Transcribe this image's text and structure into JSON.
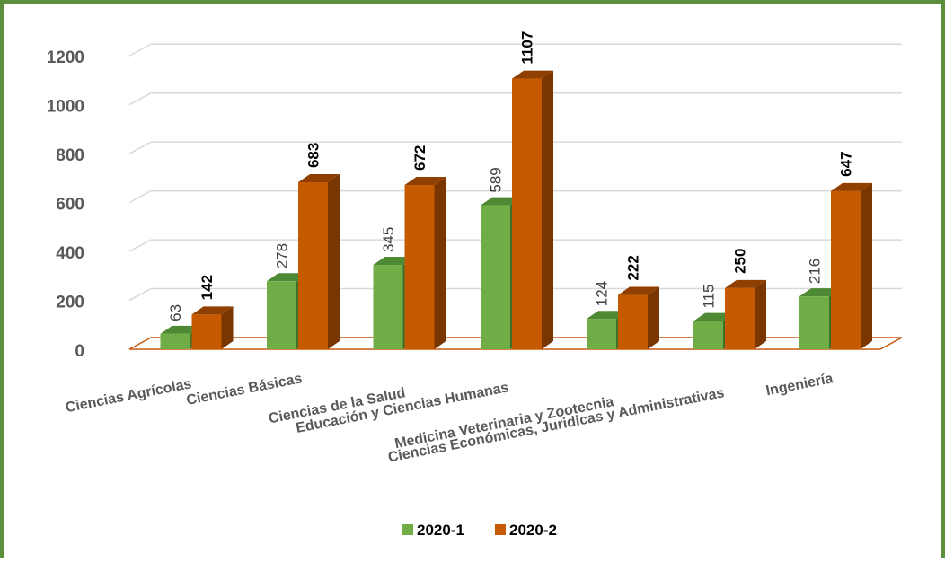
{
  "chart_data": {
    "type": "bar",
    "style": "3d-clustered-column",
    "categories": [
      "Ciencias Agrícolas",
      "Ciencias Básicas",
      "Ciencias de la Salud",
      "Educación y Ciencias Humanas",
      "Medicina Veterinaria y Zootecnia",
      "Ciencias Económicas, Juridicas y Administrativas",
      "Ingeniería"
    ],
    "series": [
      {
        "name": "2020-1",
        "values": [
          63,
          278,
          345,
          589,
          124,
          115,
          216
        ]
      },
      {
        "name": "2020-2",
        "values": [
          142,
          683,
          672,
          1107,
          222,
          250,
          647
        ]
      }
    ],
    "y_ticks": [
      "0",
      "200",
      "400",
      "600",
      "800",
      "1000",
      "1200"
    ],
    "ylim": [
      0,
      1200
    ],
    "grid": true,
    "legend": "bottom",
    "data_labels": true,
    "colors": {
      "series1_front": "#70ad47",
      "series1_top": "#4e8a33",
      "series1_side": "#3f6e27",
      "series2_front": "#c55a00",
      "series2_top": "#8f4000",
      "series2_side": "#7a3600",
      "floor": "#c55a11",
      "grid": "#d9d9d9",
      "frame": "#5b8f3c"
    }
  }
}
